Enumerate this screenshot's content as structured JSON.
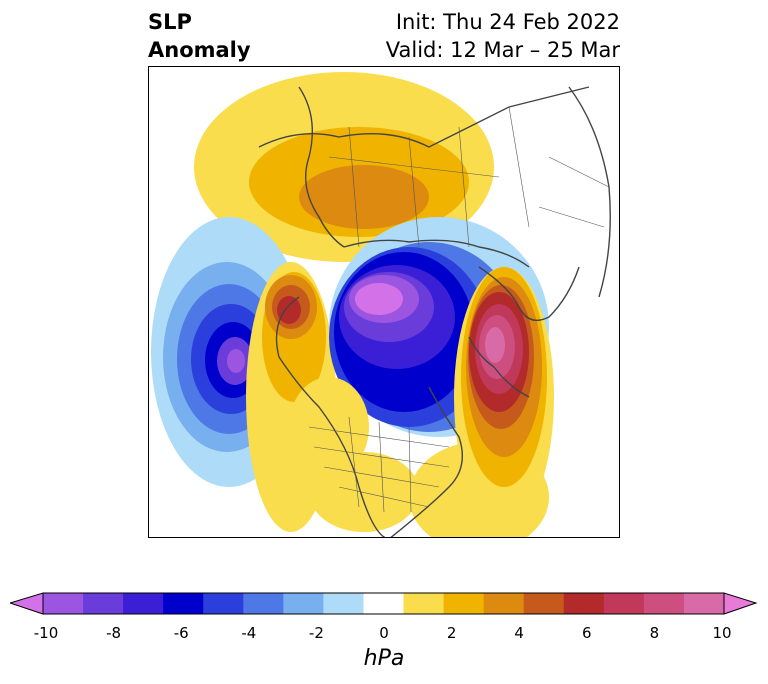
{
  "title": {
    "field_line1": "SLP",
    "field_line2": "Anomaly",
    "init": "Init: Thu 24 Feb 2022",
    "valid": "Valid: 12 Mar – 25 Mar"
  },
  "colorbar": {
    "unit": "hPa",
    "ticks": [
      "-10",
      "-8",
      "-6",
      "-4",
      "-2",
      "0",
      "2",
      "4",
      "6",
      "8",
      "10"
    ],
    "colors": [
      "#d372e8",
      "#9b55e0",
      "#6a3ddb",
      "#3a1fd6",
      "#0000cd",
      "#2a3fdc",
      "#4d78e6",
      "#78afef",
      "#aedcf8",
      "#ffffff",
      "#f9dd4d",
      "#f0b400",
      "#dc8a10",
      "#c65a1d",
      "#b22a2a",
      "#c0385a",
      "#cc4f80",
      "#d86aa8",
      "#e87ad8"
    ],
    "extend": "both",
    "min": -10,
    "max": 10
  },
  "map": {
    "projection": "polar-stereographic",
    "region": "northern hemisphere (North America / Arctic)",
    "anomaly_centers": [
      {
        "type": "negative",
        "min_hpa": -9,
        "location": "Arctic Ocean near pole"
      },
      {
        "type": "negative",
        "min_hpa": -8,
        "location": "northeast Pacific"
      },
      {
        "type": "positive",
        "max_hpa": 6,
        "location": "Alaska / Bering region"
      },
      {
        "type": "positive",
        "max_hpa": 9,
        "location": "north Atlantic / Scandinavia"
      },
      {
        "type": "positive",
        "max_hpa": 4,
        "location": "northern Asia / Siberia"
      }
    ]
  }
}
